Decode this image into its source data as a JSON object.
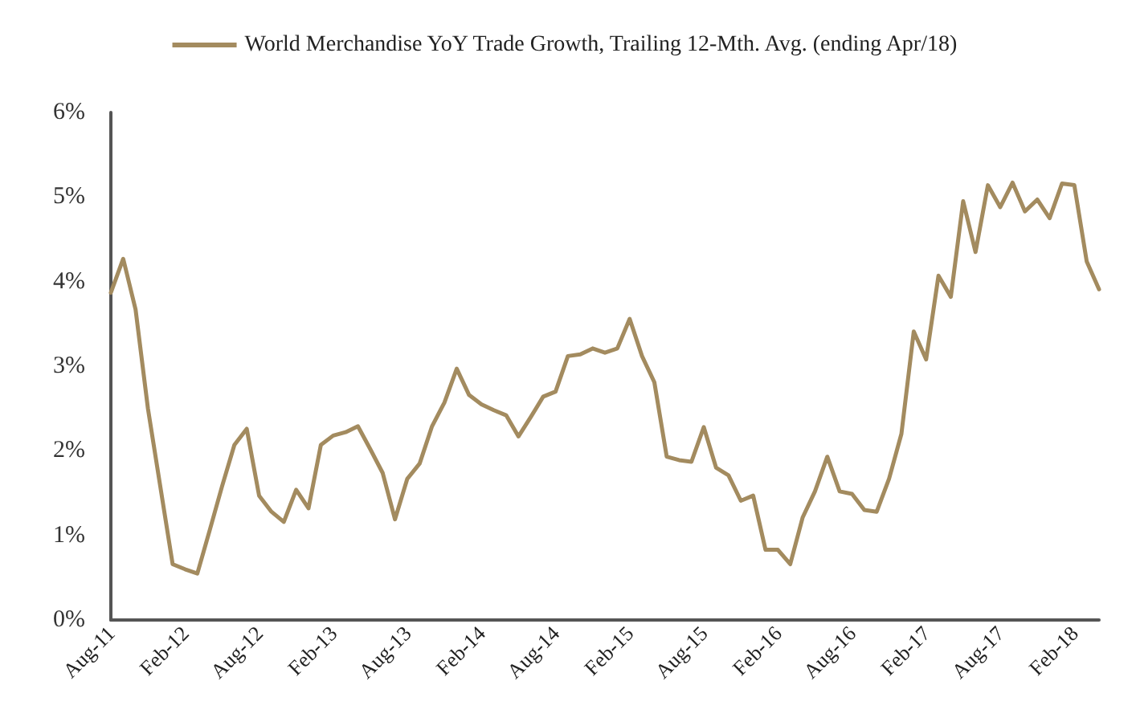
{
  "chart_data": {
    "type": "line",
    "legend": "top",
    "grid": false,
    "marker": "none",
    "line_style": "solid",
    "categories": [
      "Aug-11",
      null,
      null,
      null,
      null,
      null,
      "Feb-12",
      null,
      null,
      null,
      null,
      null,
      "Aug-12",
      null,
      null,
      null,
      null,
      null,
      "Feb-13",
      null,
      null,
      null,
      null,
      null,
      "Aug-13",
      null,
      null,
      null,
      null,
      null,
      "Feb-14",
      null,
      null,
      null,
      null,
      null,
      "Aug-14",
      null,
      null,
      null,
      null,
      null,
      "Feb-15",
      null,
      null,
      null,
      null,
      null,
      "Aug-15",
      null,
      null,
      null,
      null,
      null,
      "Feb-16",
      null,
      null,
      null,
      null,
      null,
      "Aug-16",
      null,
      null,
      null,
      null,
      null,
      "Feb-17",
      null,
      null,
      null,
      null,
      null,
      "Aug-17",
      null,
      null,
      null,
      null,
      null,
      "Feb-18",
      null,
      null
    ],
    "series": [
      {
        "name": "World Merchandise YoY Trade Growth, Trailing 12-Mth. Avg. (ending Apr/18)",
        "color": "#a38b5f",
        "values": [
          3.87,
          4.27,
          3.67,
          2.5,
          1.58,
          0.66,
          0.6,
          0.55,
          1.06,
          1.58,
          2.07,
          2.26,
          1.47,
          1.28,
          1.16,
          1.54,
          1.32,
          2.07,
          2.18,
          2.22,
          2.29,
          2.02,
          1.74,
          1.19,
          1.67,
          1.85,
          2.29,
          2.57,
          2.97,
          2.66,
          2.55,
          2.48,
          2.42,
          2.17,
          2.4,
          2.64,
          2.7,
          3.12,
          3.14,
          3.21,
          3.16,
          3.21,
          3.56,
          3.12,
          2.81,
          1.93,
          1.89,
          1.87,
          2.28,
          1.8,
          1.71,
          1.41,
          1.47,
          0.83,
          0.83,
          0.66,
          1.21,
          1.52,
          1.93,
          1.52,
          1.49,
          1.3,
          1.28,
          1.67,
          2.2,
          3.41,
          3.08,
          4.07,
          3.82,
          4.95,
          4.35,
          5.14,
          4.88,
          5.17,
          4.83,
          4.97,
          4.75,
          5.16,
          5.14,
          4.24,
          3.91
        ]
      }
    ],
    "ylim": [
      0,
      6
    ],
    "yticks": [
      {
        "value": 0,
        "label": "0%"
      },
      {
        "value": 1,
        "label": "1%"
      },
      {
        "value": 2,
        "label": "2%"
      },
      {
        "value": 3,
        "label": "3%"
      },
      {
        "value": 4,
        "label": "4%"
      },
      {
        "value": 5,
        "label": "5%"
      },
      {
        "value": 6,
        "label": "6%"
      }
    ]
  }
}
